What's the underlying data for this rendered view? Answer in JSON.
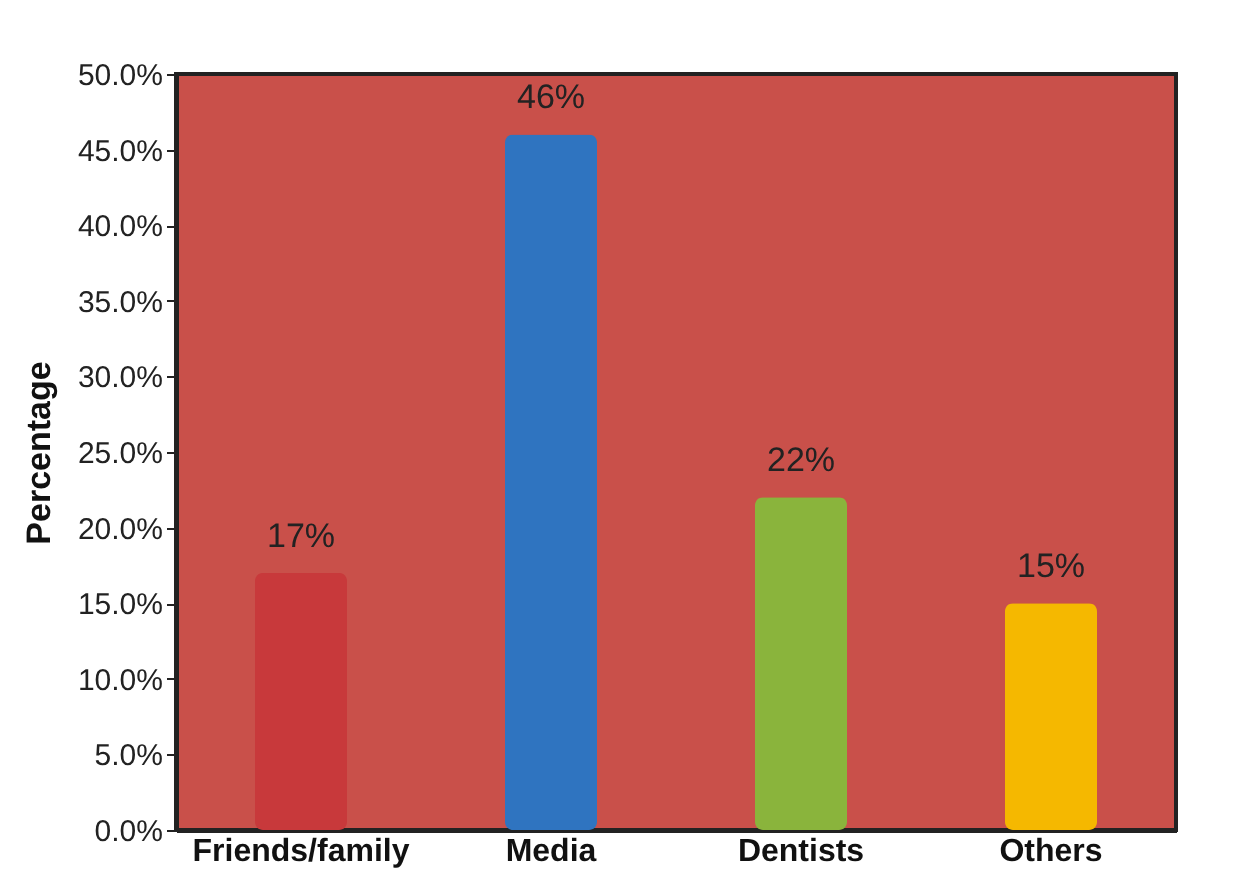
{
  "chart_data": {
    "type": "bar",
    "ylabel": "Percentage",
    "categories": [
      "Friends/family",
      "Media",
      "Dentists",
      "Others"
    ],
    "values": [
      17,
      46,
      22,
      15
    ],
    "colors": [
      "#c8393b",
      "#2f74c0",
      "#8ab43c",
      "#f5b800"
    ],
    "value_labels": [
      "17%",
      "46%",
      "22%",
      "15%"
    ],
    "ylim": [
      0,
      50
    ],
    "yticks": [
      {
        "value": 0,
        "label": "0.0%"
      },
      {
        "value": 5,
        "label": "5.0%"
      },
      {
        "value": 10,
        "label": "10.0%"
      },
      {
        "value": 15,
        "label": "15.0%"
      },
      {
        "value": 20,
        "label": "20.0%"
      },
      {
        "value": 25,
        "label": "25.0%"
      },
      {
        "value": 30,
        "label": "30.0%"
      },
      {
        "value": 35,
        "label": "35.0%"
      },
      {
        "value": 40,
        "label": "40.0%"
      },
      {
        "value": 45,
        "label": "45.0%"
      },
      {
        "value": 50,
        "label": "50.0%"
      }
    ],
    "grid": false
  }
}
